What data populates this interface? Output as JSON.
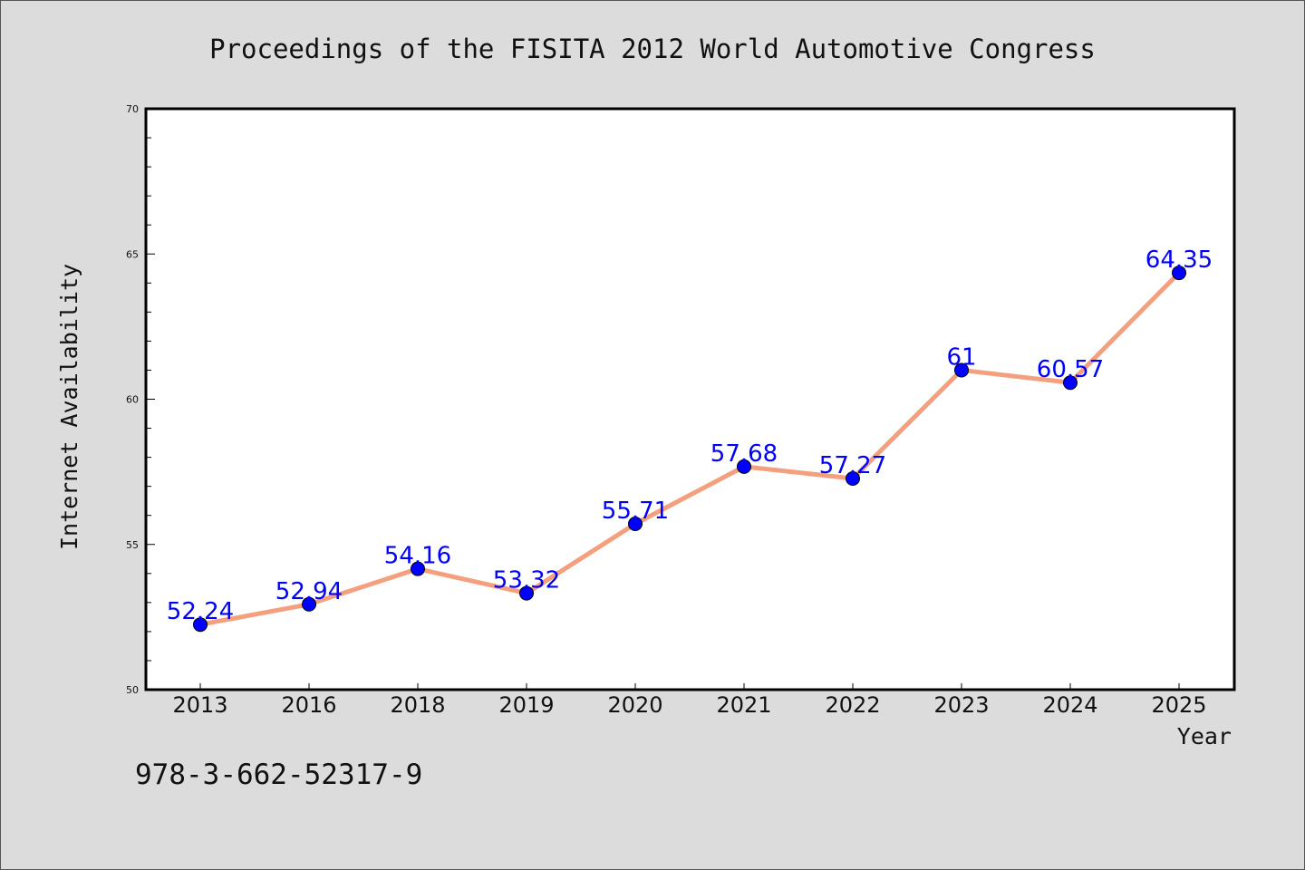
{
  "chart_data": {
    "type": "line",
    "title": "Proceedings of the FISITA 2012 World Automotive Congress",
    "xlabel": "Year",
    "ylabel": "Internet Availability",
    "categories": [
      "2013",
      "2016",
      "2018",
      "2019",
      "2020",
      "2021",
      "2022",
      "2023",
      "2024",
      "2025"
    ],
    "series": [
      {
        "values": [
          52.24,
          52.94,
          54.16,
          53.32,
          55.71,
          57.68,
          57.27,
          61,
          60.57,
          64.35
        ],
        "labels": [
          "52.24",
          "52.94",
          "54.16",
          "53.32",
          "55.71",
          "57.68",
          "57.27",
          "61",
          "60.57",
          "64.35"
        ]
      }
    ],
    "ylim": [
      50,
      70
    ],
    "yticks": [
      50,
      55,
      60,
      65,
      70
    ],
    "ytick_labels": [
      "50",
      "55",
      "60",
      "65",
      "70"
    ],
    "grid": false,
    "colors": {
      "line": "#f4a07e",
      "marker": "#0000ff",
      "label": "#0000ff",
      "plot_background": "#ffffff",
      "page_background": "#dcdcdc"
    }
  },
  "footer": {
    "isbn": "978-3-662-52317-9"
  }
}
